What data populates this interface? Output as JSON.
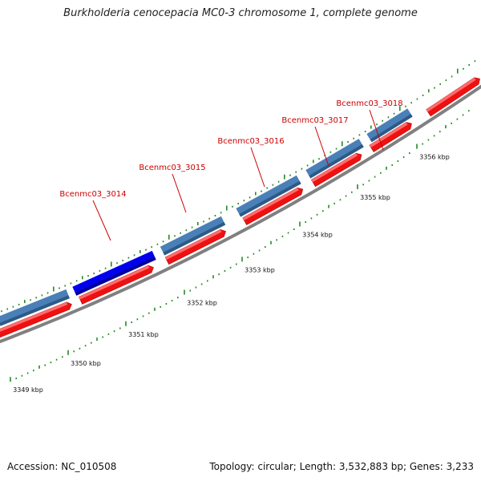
{
  "title": "Burkholderia cenocepacia MC0-3 chromosome 1, complete genome",
  "footer": {
    "accession": "Accession: NC_010508",
    "topology": "Topology: circular; Length: 3,532,883 bp; Genes: 3,233"
  },
  "colors": {
    "highlight_gene": "#0000ee",
    "forward_gene": "#4a80b8",
    "reverse_gene": "#ee1111",
    "backbone": "#808080",
    "tick": "#228b22",
    "gene_label": "#cc0000"
  },
  "gene_labels": [
    "Bcenmc03_3014",
    "Bcenmc03_3015",
    "Bcenmc03_3016",
    "Bcenmc03_3017",
    "Bcenmc03_3018"
  ],
  "kbp_labels": [
    "3349 kbp",
    "3350 kbp",
    "3351 kbp",
    "3352 kbp",
    "3353 kbp",
    "3354 kbp",
    "3355 kbp",
    "3356 kbp"
  ]
}
